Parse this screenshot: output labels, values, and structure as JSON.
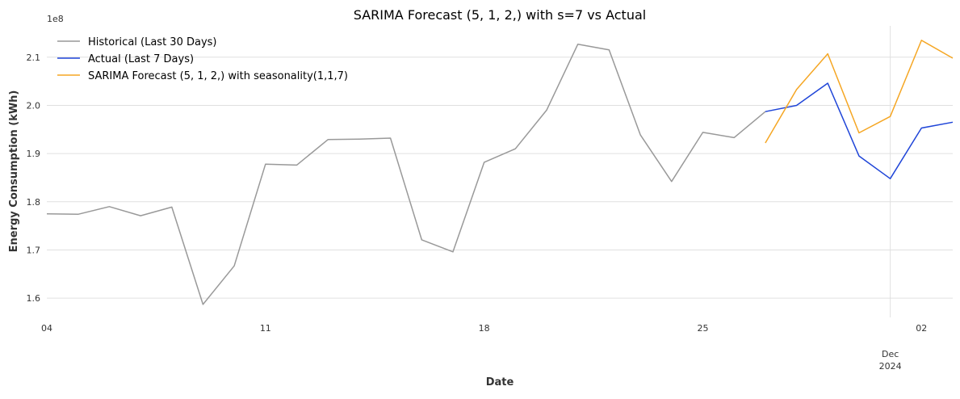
{
  "chart_data": {
    "type": "line",
    "title": "SARIMA Forecast (5, 1, 2,) with s=7 vs Actual",
    "xlabel": "Date",
    "ylabel": "Energy Consumption (kWh)",
    "y_offset_label": "1e8",
    "y_unit_multiplier": 100000000,
    "ylim": [
      1.56,
      2.165
    ],
    "xlim": [
      "2024-11-04",
      "2024-12-03"
    ],
    "grid": true,
    "legend_position": "top-left",
    "x_ticks": [
      {
        "date": "2024-11-04",
        "label": "04"
      },
      {
        "date": "2024-11-11",
        "label": "11"
      },
      {
        "date": "2024-11-18",
        "label": "18"
      },
      {
        "date": "2024-11-25",
        "label": "25"
      },
      {
        "date": "2024-12-02",
        "label": "02"
      }
    ],
    "x_major_tick": {
      "date": "2024-12-01",
      "label_line1": "Dec",
      "label_line2": "2024"
    },
    "y_ticks": [
      1.6,
      1.7,
      1.8,
      1.9,
      2.0,
      2.1
    ],
    "series": [
      {
        "name": "Historical (Last 30 Days)",
        "color": "#999999",
        "x": [
          "2024-11-04",
          "2024-11-05",
          "2024-11-06",
          "2024-11-07",
          "2024-11-08",
          "2024-11-09",
          "2024-11-10",
          "2024-11-11",
          "2024-11-12",
          "2024-11-13",
          "2024-11-14",
          "2024-11-15",
          "2024-11-16",
          "2024-11-17",
          "2024-11-18",
          "2024-11-19",
          "2024-11-20",
          "2024-11-21",
          "2024-11-22",
          "2024-11-23",
          "2024-11-24",
          "2024-11-25",
          "2024-11-26",
          "2024-11-27"
        ],
        "values": [
          1.775,
          1.774,
          1.79,
          1.771,
          1.789,
          1.587,
          1.667,
          1.878,
          1.876,
          1.929,
          1.93,
          1.932,
          1.721,
          1.696,
          1.882,
          1.91,
          1.99,
          2.127,
          2.115,
          1.939,
          1.842,
          1.944,
          1.933,
          1.987
        ]
      },
      {
        "name": "Actual (Last 7 Days)",
        "color": "#1f45d8",
        "x": [
          "2024-11-27",
          "2024-11-28",
          "2024-11-29",
          "2024-11-30",
          "2024-12-01",
          "2024-12-02",
          "2024-12-03"
        ],
        "values": [
          1.987,
          2.0,
          2.046,
          1.895,
          1.848,
          1.953,
          1.965
        ]
      },
      {
        "name": "SARIMA Forecast (5, 1, 2,) with seasonality(1,1,7)",
        "color": "#f5a623",
        "x": [
          "2024-11-27",
          "2024-11-28",
          "2024-11-29",
          "2024-11-30",
          "2024-12-01",
          "2024-12-02",
          "2024-12-03"
        ],
        "values": [
          1.922,
          2.033,
          2.107,
          1.943,
          1.977,
          2.135,
          2.098
        ]
      }
    ]
  }
}
